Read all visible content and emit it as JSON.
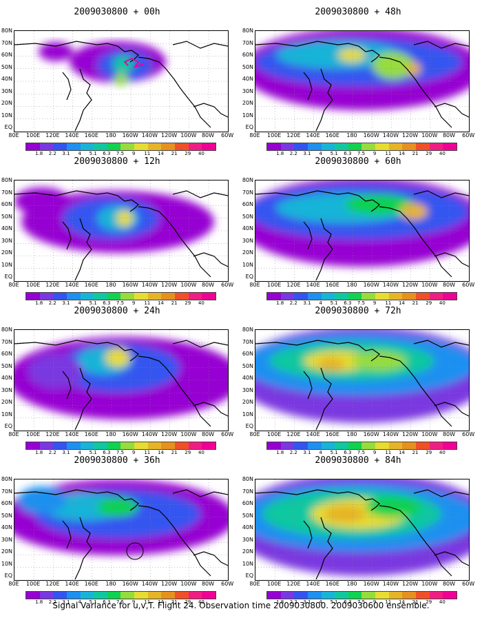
{
  "caption": "Signal Variance for u,v,T. Flight 24. Observation time 2009030800. 2009030600 ensemble.",
  "lat_labels": [
    "80N",
    "70N",
    "60N",
    "50N",
    "40N",
    "30N",
    "20N",
    "10N",
    "EQ"
  ],
  "lon_labels": [
    "80E",
    "100E",
    "120E",
    "140E",
    "160E",
    "180",
    "160W",
    "140W",
    "120W",
    "100W",
    "80W",
    "60W"
  ],
  "colorbar": {
    "levels": [
      "1.8",
      "2.2",
      "3.1",
      "4",
      "5.1",
      "6.3",
      "7.5",
      "9",
      "11",
      "14",
      "21",
      "29",
      "40"
    ],
    "colors": [
      "#9600d2",
      "#7a38e0",
      "#3454f0",
      "#1e90f0",
      "#18b4d8",
      "#10c8a0",
      "#10d250",
      "#96dc3c",
      "#e6dc32",
      "#e6b428",
      "#e69020",
      "#f05028",
      "#f01e82",
      "#f00096"
    ]
  },
  "panels": [
    {
      "title": "2009030800 + 00h",
      "lead_hours": 0
    },
    {
      "title": "2009030800 + 48h",
      "lead_hours": 48
    },
    {
      "title": "2009030800 + 12h",
      "lead_hours": 12
    },
    {
      "title": "2009030800 + 60h",
      "lead_hours": 60
    },
    {
      "title": "2009030800 + 24h",
      "lead_hours": 24
    },
    {
      "title": "2009030800 + 72h",
      "lead_hours": 72
    },
    {
      "title": "2009030800 + 36h",
      "lead_hours": 36
    },
    {
      "title": "2009030800 + 84h",
      "lead_hours": 84
    }
  ]
}
